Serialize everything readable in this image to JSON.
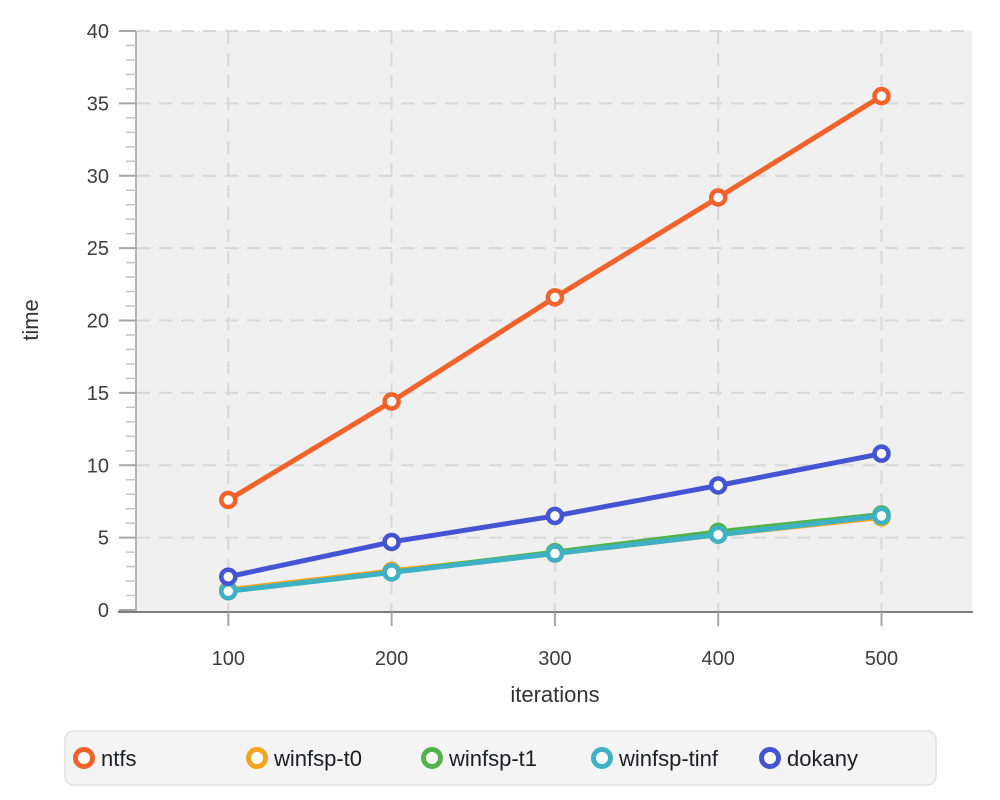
{
  "chart_data": {
    "type": "line",
    "title": "",
    "xlabel": "iterations",
    "ylabel": "time",
    "x": [
      100,
      200,
      300,
      400,
      500
    ],
    "xticks": [
      100,
      200,
      300,
      400,
      500
    ],
    "yticks": [
      0,
      5,
      10,
      15,
      20,
      25,
      30,
      35,
      40
    ],
    "xlim": [
      44,
      556
    ],
    "ylim": [
      0,
      40
    ],
    "grid": "dashed",
    "legend_position": "bottom",
    "plot_bg_color": "#f0f0f1",
    "gridline_color": "#d8d8d8",
    "marker_fill": "#ffffff",
    "series": [
      {
        "name": "ntfs",
        "color": "#f2632c",
        "values": [
          7.6,
          14.4,
          21.6,
          28.5,
          35.5
        ]
      },
      {
        "name": "winfsp-t0",
        "color": "#f5a41d",
        "values": [
          1.4,
          2.7,
          3.9,
          5.2,
          6.4
        ]
      },
      {
        "name": "winfsp-t1",
        "color": "#52b34c",
        "values": [
          1.3,
          2.6,
          4.0,
          5.4,
          6.6
        ]
      },
      {
        "name": "winfsp-tinf",
        "color": "#3fb1c5",
        "values": [
          1.3,
          2.6,
          3.9,
          5.2,
          6.5
        ]
      },
      {
        "name": "dokany",
        "color": "#4554d2",
        "values": [
          2.3,
          4.7,
          6.5,
          8.6,
          10.8
        ]
      }
    ]
  }
}
